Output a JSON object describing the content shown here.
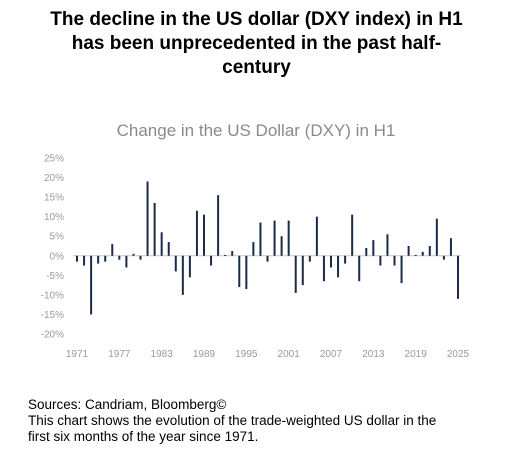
{
  "headline": {
    "lines": [
      "The decline in the US dollar (DXY index) in H1",
      "has been unprecedented in the past half-",
      "century"
    ]
  },
  "chart_data": {
    "type": "bar",
    "title": "Change in the US Dollar (DXY) in H1",
    "xlabel": "",
    "ylabel": "",
    "ylim": [
      -0.2,
      0.25
    ],
    "y_ticks": [
      0.25,
      0.2,
      0.15,
      0.1,
      0.05,
      0,
      -0.05,
      -0.1,
      -0.15,
      -0.2
    ],
    "y_tick_labels": [
      "25%",
      "20%",
      "15%",
      "10%",
      "5%",
      "0%",
      "-5%",
      "-10%",
      "-15%",
      "-20%"
    ],
    "x_tick_labels": [
      "1971",
      "1977",
      "1983",
      "1989",
      "1995",
      "2001",
      "2007",
      "2013",
      "2019",
      "2025"
    ],
    "x_range": [
      1971,
      2025
    ],
    "grid": false,
    "bar_color": "#1b2a4a",
    "axis_text_color": "#9a9a9a",
    "series": [
      {
        "x": [
          1971,
          1972,
          1973,
          1974,
          1975,
          1976,
          1977,
          1978,
          1979,
          1980,
          1981,
          1982,
          1983,
          1984,
          1985,
          1986,
          1987,
          1988,
          1989,
          1990,
          1991,
          1992,
          1993,
          1994,
          1995,
          1996,
          1997,
          1998,
          1999,
          2000,
          2001,
          2002,
          2003,
          2004,
          2005,
          2006,
          2007,
          2008,
          2009,
          2010,
          2011,
          2012,
          2013,
          2014,
          2015,
          2016,
          2017,
          2018,
          2019,
          2020,
          2021,
          2022,
          2023,
          2024,
          2025
        ],
        "values": [
          -0.015,
          -0.025,
          -0.15,
          -0.02,
          -0.015,
          0.03,
          -0.01,
          -0.03,
          0.005,
          -0.01,
          0.19,
          0.135,
          0.06,
          0.035,
          -0.04,
          -0.1,
          -0.055,
          0.115,
          0.105,
          -0.025,
          0.155,
          0.002,
          0.012,
          -0.08,
          -0.085,
          0.035,
          0.085,
          -0.015,
          0.09,
          0.05,
          0.09,
          -0.095,
          -0.075,
          -0.015,
          0.1,
          -0.065,
          -0.03,
          -0.055,
          -0.02,
          0.105,
          -0.065,
          0.02,
          0.04,
          -0.025,
          0.055,
          -0.025,
          -0.07,
          0.025,
          0.002,
          0.01,
          0.025,
          0.095,
          -0.01,
          0.045,
          -0.11
        ]
      }
    ]
  },
  "footer": {
    "source": "Sources: Candriam, Bloomberg©",
    "description_line1": "This chart shows the evolution of the trade-weighted US dollar in the",
    "description_line2": "first six months of the year since 1971."
  }
}
